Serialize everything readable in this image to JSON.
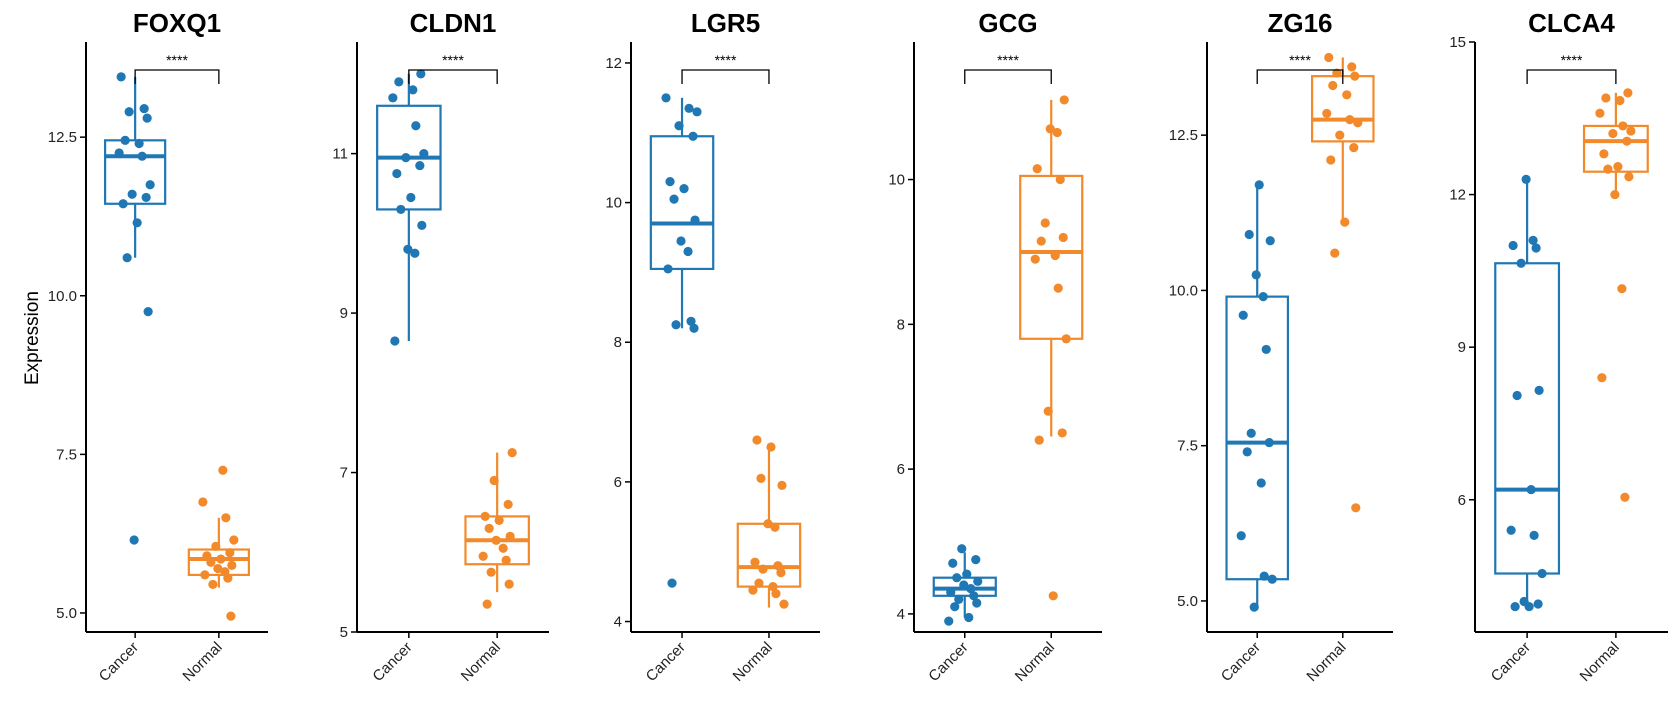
{
  "ylabel": "Expression",
  "colors": {
    "Cancer": "#1f77b4",
    "Normal": "#f28a2c"
  },
  "chart_data": [
    {
      "type": "box",
      "title": "FOXQ1",
      "ylim": [
        4.7,
        14.0
      ],
      "yticks": [
        5.0,
        7.5,
        10.0,
        12.5
      ],
      "tick_labels": [
        "5.0",
        "7.5",
        "10.0",
        "12.5"
      ],
      "categories": [
        "Cancer",
        "Normal"
      ],
      "significance": "****",
      "groups": [
        {
          "name": "Cancer",
          "q1": 11.45,
          "median": 12.2,
          "q3": 12.45,
          "whisker_low": 10.6,
          "whisker_high": 13.45,
          "points": [
            13.45,
            12.95,
            12.9,
            12.8,
            12.45,
            12.4,
            12.25,
            12.2,
            11.75,
            11.6,
            11.55,
            11.45,
            11.15,
            10.6,
            9.75,
            6.15
          ]
        },
        {
          "name": "Normal",
          "q1": 5.6,
          "median": 5.85,
          "q3": 6.0,
          "whisker_low": 5.4,
          "whisker_high": 6.5,
          "points": [
            7.25,
            6.75,
            6.5,
            6.15,
            6.05,
            5.95,
            5.9,
            5.85,
            5.8,
            5.75,
            5.7,
            5.65,
            5.6,
            5.55,
            5.45,
            4.95
          ]
        }
      ]
    },
    {
      "type": "box",
      "title": "CLDN1",
      "ylim": [
        5.0,
        12.4
      ],
      "yticks": [
        5,
        7,
        9,
        11
      ],
      "tick_labels": [
        "5",
        "7",
        "9",
        "11"
      ],
      "categories": [
        "Cancer",
        "Normal"
      ],
      "significance": "****",
      "groups": [
        {
          "name": "Cancer",
          "q1": 10.3,
          "median": 10.95,
          "q3": 11.6,
          "whisker_low": 8.65,
          "whisker_high": 12.0,
          "points": [
            12.0,
            11.9,
            11.8,
            11.7,
            11.35,
            11.0,
            10.95,
            10.85,
            10.75,
            10.45,
            10.3,
            10.1,
            9.8,
            9.75,
            8.65
          ]
        },
        {
          "name": "Normal",
          "q1": 5.85,
          "median": 6.15,
          "q3": 6.45,
          "whisker_low": 5.5,
          "whisker_high": 7.25,
          "points": [
            7.25,
            6.9,
            6.6,
            6.45,
            6.4,
            6.3,
            6.2,
            6.15,
            6.05,
            5.95,
            5.9,
            5.75,
            5.6,
            5.35
          ]
        }
      ]
    },
    {
      "type": "box",
      "title": "LGR5",
      "ylim": [
        3.85,
        12.3
      ],
      "yticks": [
        4,
        6,
        8,
        10,
        12
      ],
      "tick_labels": [
        "4",
        "6",
        "8",
        "10",
        "12"
      ],
      "categories": [
        "Cancer",
        "Normal"
      ],
      "significance": "****",
      "groups": [
        {
          "name": "Cancer",
          "q1": 9.05,
          "median": 9.7,
          "q3": 10.95,
          "whisker_low": 8.2,
          "whisker_high": 11.5,
          "points": [
            11.5,
            11.35,
            11.3,
            11.1,
            10.95,
            10.3,
            10.2,
            10.05,
            9.75,
            9.45,
            9.3,
            9.05,
            8.3,
            8.25,
            8.2,
            4.55
          ]
        },
        {
          "name": "Normal",
          "q1": 4.5,
          "median": 4.78,
          "q3": 5.4,
          "whisker_low": 4.2,
          "whisker_high": 6.55,
          "points": [
            6.6,
            6.5,
            6.05,
            5.95,
            5.4,
            5.35,
            4.85,
            4.8,
            4.75,
            4.7,
            4.55,
            4.5,
            4.45,
            4.4,
            4.25
          ]
        }
      ]
    },
    {
      "type": "box",
      "title": "GCG",
      "ylim": [
        3.75,
        11.9
      ],
      "yticks": [
        4,
        6,
        8,
        10
      ],
      "tick_labels": [
        "4",
        "6",
        "8",
        "10"
      ],
      "categories": [
        "Cancer",
        "Normal"
      ],
      "significance": "****",
      "groups": [
        {
          "name": "Cancer",
          "q1": 4.25,
          "median": 4.35,
          "q3": 4.5,
          "whisker_low": 3.95,
          "whisker_high": 4.85,
          "points": [
            4.9,
            4.75,
            4.7,
            4.55,
            4.5,
            4.45,
            4.4,
            4.35,
            4.3,
            4.25,
            4.2,
            4.15,
            4.1,
            3.95,
            3.9
          ]
        },
        {
          "name": "Normal",
          "q1": 7.8,
          "median": 9.0,
          "q3": 10.05,
          "whisker_low": 6.45,
          "whisker_high": 11.1,
          "points": [
            11.1,
            10.7,
            10.65,
            10.15,
            10.0,
            9.4,
            9.2,
            9.15,
            8.95,
            8.9,
            8.5,
            7.8,
            6.8,
            6.5,
            6.4,
            4.25
          ]
        }
      ]
    },
    {
      "type": "box",
      "title": "ZG16",
      "ylim": [
        4.5,
        14.0
      ],
      "yticks": [
        5.0,
        7.5,
        10.0,
        12.5
      ],
      "tick_labels": [
        "5.0",
        "7.5",
        "10.0",
        "12.5"
      ],
      "categories": [
        "Cancer",
        "Normal"
      ],
      "significance": "****",
      "groups": [
        {
          "name": "Cancer",
          "q1": 5.35,
          "median": 7.55,
          "q3": 9.9,
          "whisker_low": 4.9,
          "whisker_high": 11.7,
          "points": [
            11.7,
            10.9,
            10.8,
            10.25,
            9.9,
            9.6,
            9.05,
            7.7,
            7.55,
            7.4,
            6.9,
            6.05,
            5.4,
            5.35,
            4.9
          ]
        },
        {
          "name": "Normal",
          "q1": 12.4,
          "median": 12.75,
          "q3": 13.45,
          "whisker_low": 11.1,
          "whisker_high": 13.75,
          "points": [
            13.75,
            13.6,
            13.5,
            13.45,
            13.3,
            13.15,
            12.85,
            12.75,
            12.7,
            12.5,
            12.3,
            12.1,
            11.1,
            10.6,
            6.5
          ]
        }
      ]
    },
    {
      "type": "box",
      "title": "CLCA4",
      "ylim": [
        3.4,
        15.0
      ],
      "yticks": [
        6,
        9,
        12,
        15
      ],
      "tick_labels": [
        "6",
        "9",
        "12",
        "15"
      ],
      "categories": [
        "Cancer",
        "Normal"
      ],
      "significance": "****",
      "groups": [
        {
          "name": "Cancer",
          "q1": 4.55,
          "median": 6.2,
          "q3": 10.65,
          "whisker_low": 3.9,
          "whisker_high": 12.3,
          "points": [
            12.3,
            11.1,
            11.0,
            10.95,
            10.65,
            8.15,
            8.05,
            6.2,
            5.4,
            5.3,
            4.55,
            4.0,
            3.95,
            3.9,
            3.9
          ]
        },
        {
          "name": "Normal",
          "q1": 12.45,
          "median": 13.05,
          "q3": 13.35,
          "whisker_low": 12.0,
          "whisker_high": 14.0,
          "points": [
            14.0,
            13.9,
            13.85,
            13.6,
            13.35,
            13.25,
            13.2,
            13.05,
            12.8,
            12.55,
            12.5,
            12.35,
            12.0,
            10.15,
            8.4,
            6.05
          ]
        }
      ]
    }
  ]
}
